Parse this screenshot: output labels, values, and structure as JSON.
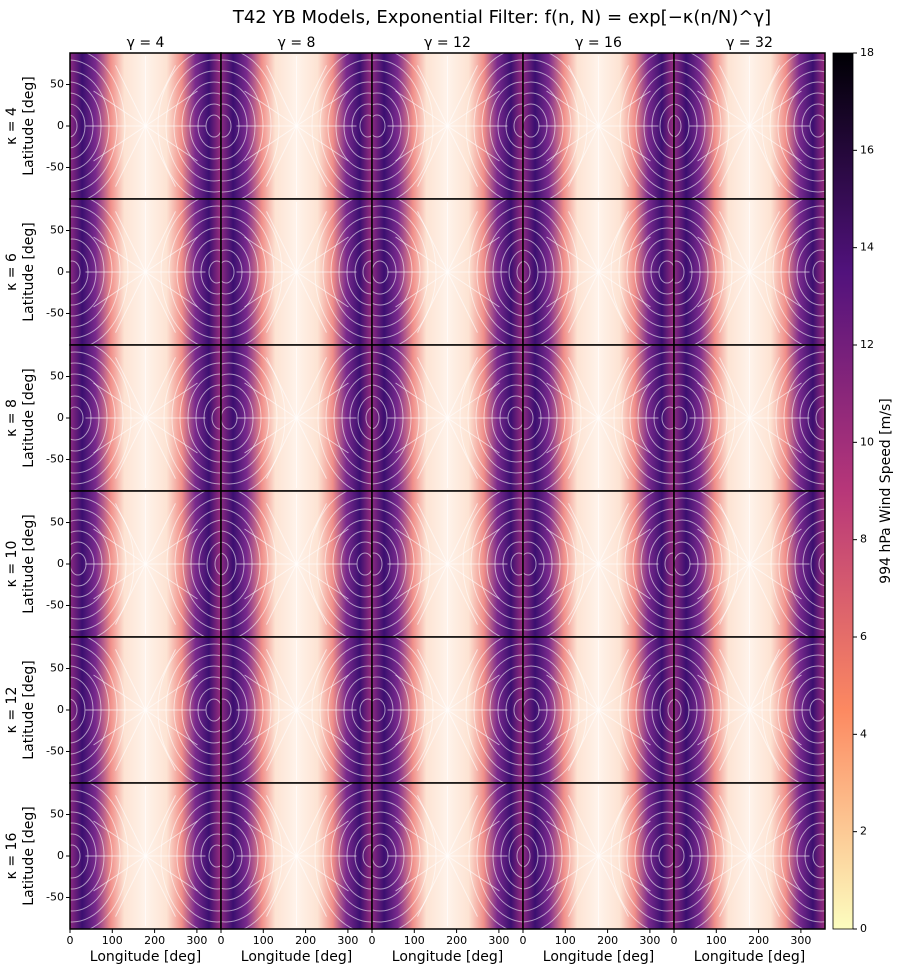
{
  "chart_data": {
    "type": "heatmap-grid",
    "title": "T42 YB Models, Exponential Filter: f(n, N) = exp[−κ(n/N)^γ]",
    "columns": [
      "γ = 4",
      "γ = 8",
      "γ = 12",
      "γ = 16",
      "γ = 32"
    ],
    "rows": [
      "κ = 4",
      "κ = 6",
      "κ = 8",
      "κ = 10",
      "κ = 12",
      "κ = 16"
    ],
    "xlabel": "Longitude [deg]",
    "ylabel": "Latitude [deg]",
    "xlim": [
      0,
      357
    ],
    "xticks": [
      0,
      100,
      200,
      300
    ],
    "ylim": [
      -88,
      88
    ],
    "yticks": [
      -50,
      0,
      50
    ],
    "colorbar": {
      "label": "994 hPa Wind Speed [m/s]",
      "lim": [
        0,
        18
      ],
      "ticks": [
        0,
        2,
        4,
        6,
        8,
        10,
        12,
        14,
        16,
        18
      ]
    }
  }
}
